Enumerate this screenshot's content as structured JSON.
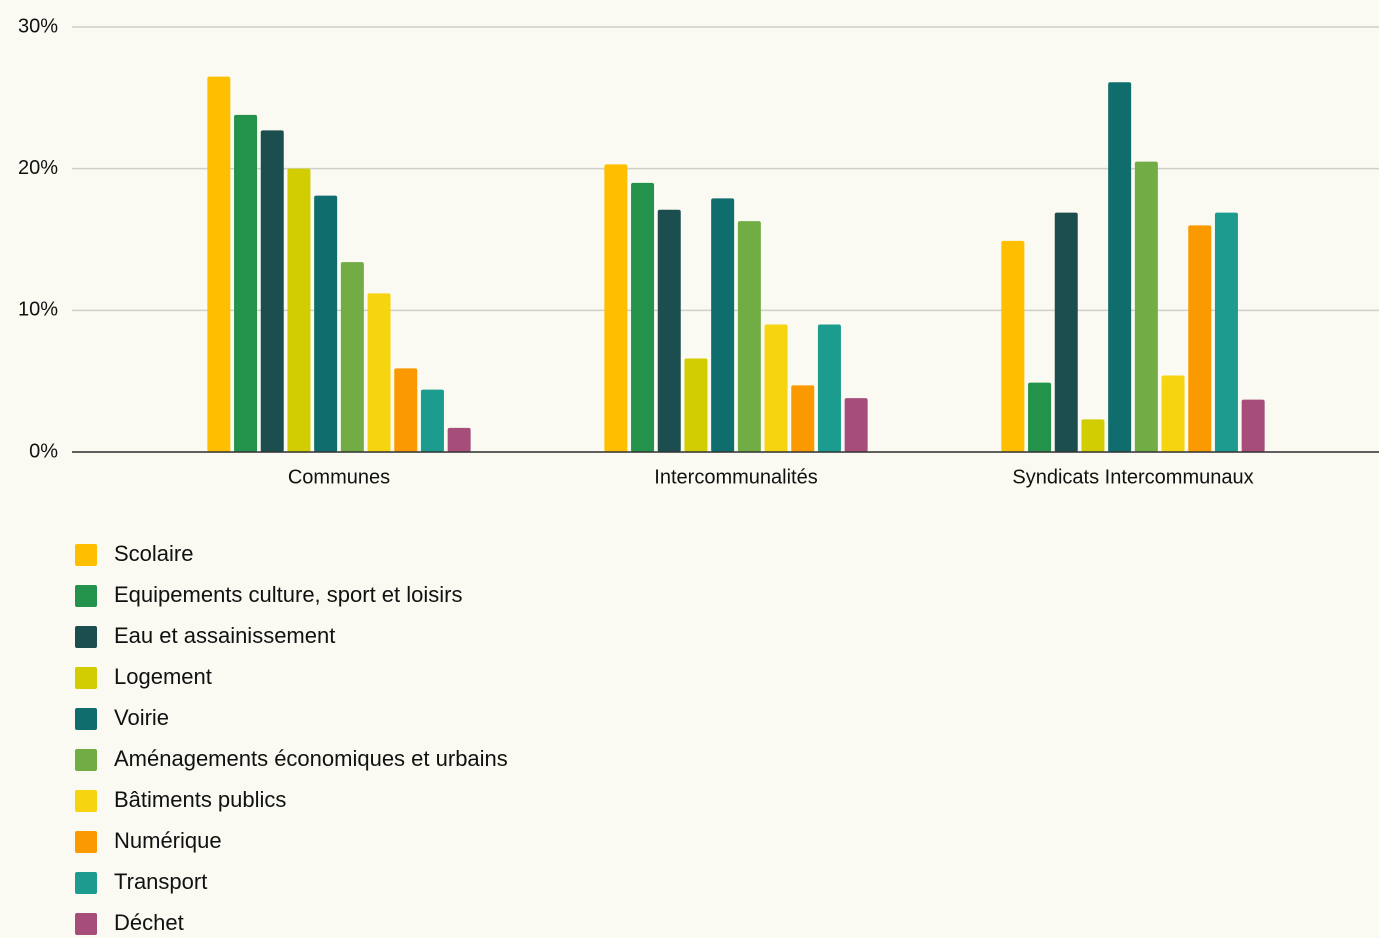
{
  "chart_data": {
    "type": "bar",
    "categories": [
      "Communes",
      "Intercommunalités",
      "Syndicats Intercommunaux"
    ],
    "series": [
      {
        "name": "Scolaire",
        "color": "#fdbf00",
        "values": [
          26.5,
          20.3,
          14.9
        ]
      },
      {
        "name": "Equipements culture, sport et loisirs",
        "color": "#23924a",
        "values": [
          23.8,
          19.0,
          4.9
        ]
      },
      {
        "name": "Eau et assainissement",
        "color": "#1d4e4f",
        "values": [
          22.7,
          17.1,
          16.9
        ]
      },
      {
        "name": "Logement",
        "color": "#d2cd00",
        "values": [
          20.0,
          6.6,
          2.3
        ]
      },
      {
        "name": "Voirie",
        "color": "#106d6d",
        "values": [
          18.1,
          17.9,
          26.1
        ]
      },
      {
        "name": "Aménagements économiques et urbains",
        "color": "#72ac45",
        "values": [
          13.4,
          16.3,
          20.5
        ]
      },
      {
        "name": "Bâtiments publics",
        "color": "#f6d410",
        "values": [
          11.2,
          9.0,
          5.4
        ]
      },
      {
        "name": "Numérique",
        "color": "#fb9a00",
        "values": [
          5.9,
          4.7,
          16.0
        ]
      },
      {
        "name": "Transport",
        "color": "#1c9c8e",
        "values": [
          4.4,
          9.0,
          16.9
        ]
      },
      {
        "name": "Déchet",
        "color": "#a64d79",
        "values": [
          1.7,
          3.8,
          3.7
        ]
      }
    ],
    "ylim": [
      0,
      30
    ],
    "yticks": [
      {
        "value": 0,
        "label": "0%"
      },
      {
        "value": 10,
        "label": "10%"
      },
      {
        "value": 20,
        "label": "20%"
      },
      {
        "value": 30,
        "label": "30%"
      }
    ],
    "grid": true,
    "legend": "bottom-left"
  }
}
